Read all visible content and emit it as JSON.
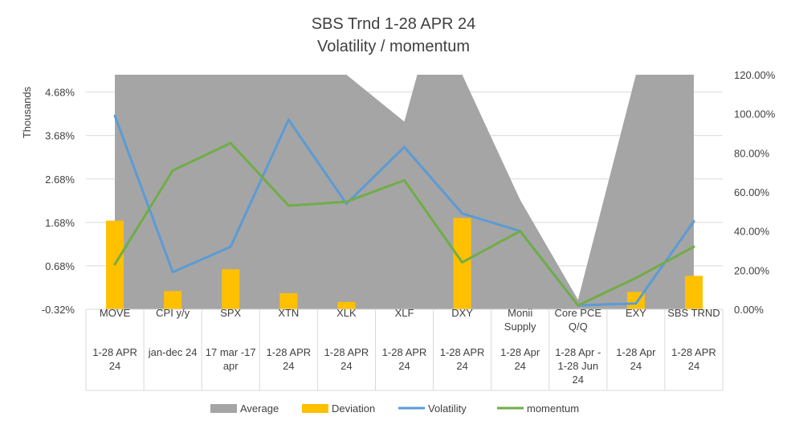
{
  "chart_data": {
    "type": "combo",
    "title": "SBS Trnd 1-28 APR 24",
    "subtitle": "Volatility / momentum",
    "ylabel_left": "Thousands",
    "y_left_ticks": [
      "4.68%",
      "3.68%",
      "2.68%",
      "1.68%",
      "0.68%",
      "-0.32%"
    ],
    "y_left_range": [
      -0.32,
      5.08
    ],
    "y_right_ticks": [
      "120.00%",
      "100.00%",
      "80.00%",
      "60.00%",
      "40.00%",
      "20.00%",
      "0.00%"
    ],
    "y_right_range": [
      0,
      120
    ],
    "categories": [
      {
        "name": [
          "MOVE"
        ],
        "period": [
          "1-28 APR",
          "24"
        ]
      },
      {
        "name": [
          "CPI y/y"
        ],
        "period": [
          "jan-dec 24"
        ]
      },
      {
        "name": [
          "SPX"
        ],
        "period": [
          "17 mar -17",
          "apr"
        ]
      },
      {
        "name": [
          "XTN"
        ],
        "period": [
          "1-28 APR",
          "24"
        ]
      },
      {
        "name": [
          "XLK"
        ],
        "period": [
          "1-28 APR",
          "24"
        ]
      },
      {
        "name": [
          "XLF"
        ],
        "period": [
          "1-28 APR",
          "24"
        ]
      },
      {
        "name": [
          "DXY"
        ],
        "period": [
          "1-28 APR",
          "24"
        ]
      },
      {
        "name": [
          "Monii",
          "Supply"
        ],
        "period": [
          "1-28 Apr",
          "24"
        ]
      },
      {
        "name": [
          "Core PCE",
          "Q/Q"
        ],
        "period": [
          "1-28 Apr -",
          "1-28 Jun",
          "24"
        ]
      },
      {
        "name": [
          "EXY"
        ],
        "period": [
          "1-28 Apr",
          "24"
        ]
      },
      {
        "name": [
          "SBS TRND"
        ],
        "period": [
          "1-28 APR",
          "24"
        ]
      }
    ],
    "series": [
      {
        "name": "Average",
        "type": "area",
        "axis": "left",
        "color": "#A5A5A5",
        "values": [
          5.08,
          5.08,
          5.08,
          5.08,
          5.08,
          4.0,
          5.08,
          2.2,
          -0.1,
          5.08,
          5.08
        ],
        "extra_point_between_5_6": 5.08
      },
      {
        "name": "Deviation",
        "type": "bar",
        "axis": "left",
        "color": "#FFC000",
        "values": [
          1.72,
          0.1,
          0.6,
          0.05,
          -0.15,
          -0.35,
          1.78,
          -0.32,
          -0.32,
          0.08,
          0.45
        ]
      },
      {
        "name": "Volatility",
        "type": "line",
        "axis": "right",
        "color": "#5B9BD5",
        "values": [
          99,
          19,
          32,
          97,
          54,
          83,
          49,
          40,
          2,
          3,
          45
        ]
      },
      {
        "name": "momentum",
        "type": "line",
        "axis": "right",
        "color": "#70AD47",
        "values": [
          23,
          71,
          85,
          53,
          55,
          66,
          24,
          40,
          2,
          16,
          32
        ]
      }
    ],
    "legend_position": "bottom",
    "legend": [
      "Average",
      "Deviation",
      "Volatility",
      "momentum"
    ],
    "grid": true
  }
}
